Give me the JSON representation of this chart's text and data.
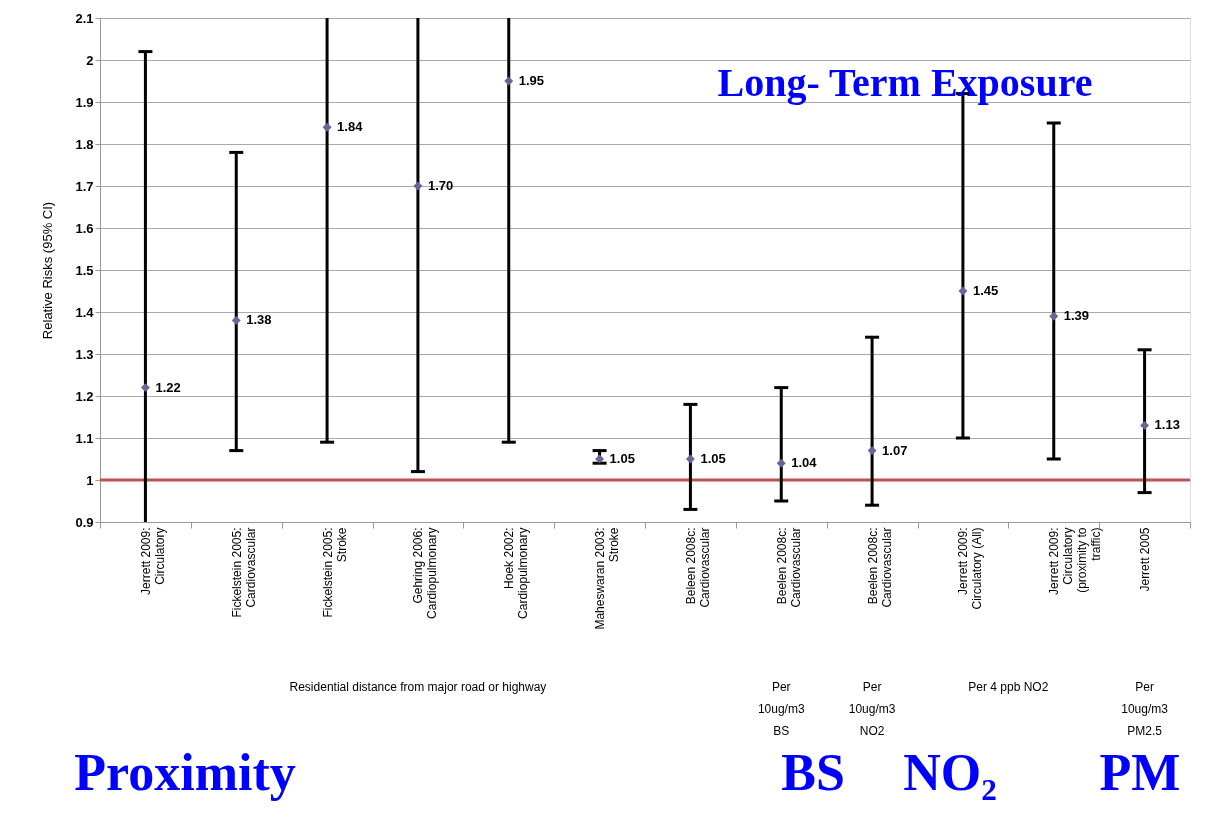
{
  "chart_data": {
    "type": "scatter",
    "ylabel": "Relative Risks (95% CI)",
    "categories": [
      "Jerrett 2009: Circulatory",
      "Fickelstein 2005: Cardiovascular",
      "Fickelstein 2005: Stroke",
      "Gehring 2006: Cardiopulmonary",
      "Hoek 2002: Cardiopulmonary",
      "Maheswaran 2003: Stroke",
      "Beleen 2008c: Cardiovascular",
      "Beelen 2008c: Cardiovascular",
      "Beelen 2008c: Cardiovascular",
      "Jerrett 2009: Circulatory (All)",
      "Jerrett 2009: Circulatory (proximity to traffic)",
      "Jerrett 2005"
    ],
    "values": [
      1.22,
      1.38,
      1.84,
      1.7,
      1.95,
      1.05,
      1.05,
      1.04,
      1.07,
      1.45,
      1.39,
      1.13
    ],
    "value_labels": [
      "1.22",
      "1.38",
      "1.84",
      "1.70",
      "1.95",
      "1.05",
      "1.05",
      "1.04",
      "1.07",
      "1.45",
      "1.39",
      "1.13"
    ],
    "errors": [
      [
        0.9,
        2.02
      ],
      [
        1.07,
        1.78
      ],
      [
        1.09,
        2.1
      ],
      [
        1.02,
        2.1
      ],
      [
        1.09,
        2.1
      ],
      [
        1.04,
        1.07
      ],
      [
        0.93,
        1.18
      ],
      [
        0.95,
        1.22
      ],
      [
        0.94,
        1.34
      ],
      [
        1.1,
        1.92
      ],
      [
        1.05,
        1.85
      ],
      [
        0.97,
        1.31
      ]
    ],
    "color": "#666699",
    "marker": "diamond",
    "ylim": [
      0.9,
      2.1
    ],
    "yticks": [
      0.9,
      1,
      1.1,
      1.2,
      1.3,
      1.4,
      1.5,
      1.6,
      1.7,
      1.8,
      1.9,
      2,
      2.1
    ],
    "grid": "y",
    "ref_lines": [
      {
        "axis": "y",
        "value": 1,
        "color": "#c0504d"
      }
    ],
    "annotations": [
      "Long- Term Exposure",
      "Residential distance from major road or highway",
      "Per 10ug/m3 BS",
      "Per 10ug/m3 NO2",
      "Per 4 ppb NO2",
      "Per 10ug/m3 PM2.5",
      "Proximity",
      "BS",
      "NO₂",
      "PM"
    ]
  }
}
